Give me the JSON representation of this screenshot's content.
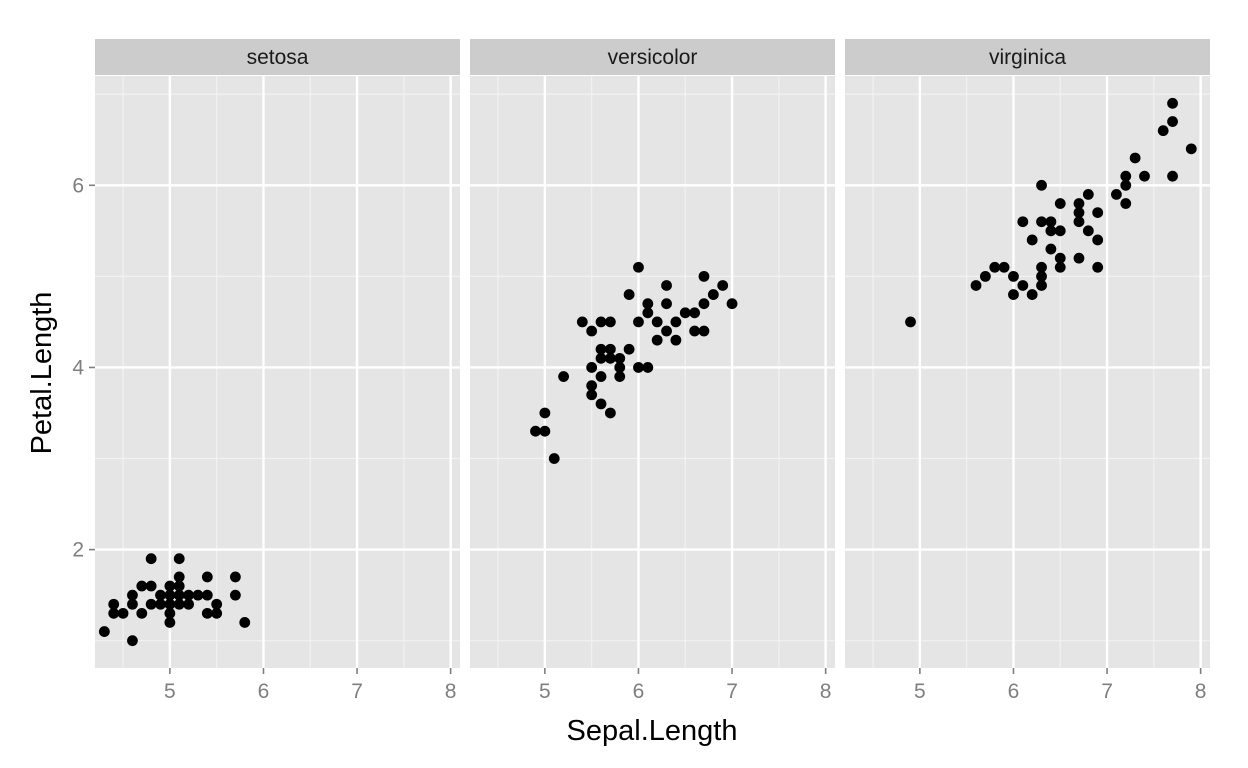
{
  "chart_data": {
    "type": "scatter",
    "xlabel": "Sepal.Length",
    "ylabel": "Petal.Length",
    "xlim": [
      4.2,
      8.1
    ],
    "ylim": [
      0.7,
      7.2
    ],
    "x_ticks": [
      "5",
      "6",
      "7",
      "8"
    ],
    "y_ticks": [
      "2",
      "4",
      "6"
    ],
    "grid": true,
    "panels": [
      {
        "name": "setosa",
        "points": [
          [
            4.3,
            1.1
          ],
          [
            4.4,
            1.4
          ],
          [
            4.4,
            1.3
          ],
          [
            4.5,
            1.3
          ],
          [
            4.6,
            1.4
          ],
          [
            4.6,
            1.5
          ],
          [
            4.6,
            1.0
          ],
          [
            4.7,
            1.6
          ],
          [
            4.7,
            1.3
          ],
          [
            4.8,
            1.6
          ],
          [
            4.8,
            1.9
          ],
          [
            4.8,
            1.4
          ],
          [
            4.9,
            1.4
          ],
          [
            4.9,
            1.5
          ],
          [
            5.0,
            1.4
          ],
          [
            5.0,
            1.5
          ],
          [
            5.0,
            1.6
          ],
          [
            5.0,
            1.2
          ],
          [
            5.0,
            1.3
          ],
          [
            5.1,
            1.4
          ],
          [
            5.1,
            1.5
          ],
          [
            5.1,
            1.7
          ],
          [
            5.1,
            1.9
          ],
          [
            5.1,
            1.6
          ],
          [
            5.2,
            1.5
          ],
          [
            5.2,
            1.4
          ],
          [
            5.3,
            1.5
          ],
          [
            5.4,
            1.7
          ],
          [
            5.4,
            1.5
          ],
          [
            5.4,
            1.3
          ],
          [
            5.5,
            1.4
          ],
          [
            5.5,
            1.3
          ],
          [
            5.7,
            1.5
          ],
          [
            5.7,
            1.7
          ],
          [
            5.8,
            1.2
          ]
        ]
      },
      {
        "name": "versicolor",
        "points": [
          [
            4.9,
            3.3
          ],
          [
            5.0,
            3.5
          ],
          [
            5.0,
            3.3
          ],
          [
            5.1,
            3.0
          ],
          [
            5.2,
            3.9
          ],
          [
            5.4,
            4.5
          ],
          [
            5.5,
            4.4
          ],
          [
            5.5,
            4.0
          ],
          [
            5.5,
            3.8
          ],
          [
            5.5,
            3.7
          ],
          [
            5.6,
            4.5
          ],
          [
            5.6,
            4.2
          ],
          [
            5.6,
            4.1
          ],
          [
            5.6,
            3.9
          ],
          [
            5.6,
            3.6
          ],
          [
            5.7,
            4.5
          ],
          [
            5.7,
            4.2
          ],
          [
            5.7,
            4.1
          ],
          [
            5.7,
            3.5
          ],
          [
            5.8,
            4.1
          ],
          [
            5.8,
            4.0
          ],
          [
            5.8,
            3.9
          ],
          [
            5.9,
            4.8
          ],
          [
            5.9,
            4.2
          ],
          [
            6.0,
            5.1
          ],
          [
            6.0,
            4.5
          ],
          [
            6.0,
            4.0
          ],
          [
            6.1,
            4.7
          ],
          [
            6.1,
            4.6
          ],
          [
            6.1,
            4.0
          ],
          [
            6.2,
            4.5
          ],
          [
            6.2,
            4.3
          ],
          [
            6.3,
            4.9
          ],
          [
            6.3,
            4.7
          ],
          [
            6.3,
            4.4
          ],
          [
            6.4,
            4.5
          ],
          [
            6.4,
            4.3
          ],
          [
            6.5,
            4.6
          ],
          [
            6.6,
            4.6
          ],
          [
            6.6,
            4.4
          ],
          [
            6.7,
            5.0
          ],
          [
            6.7,
            4.7
          ],
          [
            6.7,
            4.4
          ],
          [
            6.8,
            4.8
          ],
          [
            6.9,
            4.9
          ],
          [
            7.0,
            4.7
          ]
        ]
      },
      {
        "name": "virginica",
        "points": [
          [
            4.9,
            4.5
          ],
          [
            5.6,
            4.9
          ],
          [
            5.7,
            5.0
          ],
          [
            5.8,
            5.1
          ],
          [
            5.9,
            5.1
          ],
          [
            6.0,
            5.0
          ],
          [
            6.0,
            4.8
          ],
          [
            6.1,
            5.6
          ],
          [
            6.1,
            4.9
          ],
          [
            6.2,
            5.4
          ],
          [
            6.2,
            4.8
          ],
          [
            6.3,
            6.0
          ],
          [
            6.3,
            5.6
          ],
          [
            6.3,
            5.1
          ],
          [
            6.3,
            5.0
          ],
          [
            6.3,
            4.9
          ],
          [
            6.4,
            5.6
          ],
          [
            6.4,
            5.5
          ],
          [
            6.4,
            5.3
          ],
          [
            6.5,
            5.8
          ],
          [
            6.5,
            5.5
          ],
          [
            6.5,
            5.2
          ],
          [
            6.5,
            5.1
          ],
          [
            6.7,
            5.8
          ],
          [
            6.7,
            5.7
          ],
          [
            6.7,
            5.6
          ],
          [
            6.7,
            5.2
          ],
          [
            6.8,
            5.9
          ],
          [
            6.8,
            5.5
          ],
          [
            6.9,
            5.7
          ],
          [
            6.9,
            5.4
          ],
          [
            6.9,
            5.1
          ],
          [
            7.1,
            5.9
          ],
          [
            7.2,
            6.1
          ],
          [
            7.2,
            6.0
          ],
          [
            7.2,
            5.8
          ],
          [
            7.3,
            6.3
          ],
          [
            7.4,
            6.1
          ],
          [
            7.6,
            6.6
          ],
          [
            7.7,
            6.9
          ],
          [
            7.7,
            6.7
          ],
          [
            7.7,
            6.1
          ],
          [
            7.9,
            6.4
          ]
        ]
      }
    ]
  },
  "colors": {
    "panel_background": "#e5e5e5",
    "strip_background": "#cccccc",
    "grid_major": "#ffffff",
    "grid_minor": "#f2f2f2",
    "point": "#000000"
  }
}
